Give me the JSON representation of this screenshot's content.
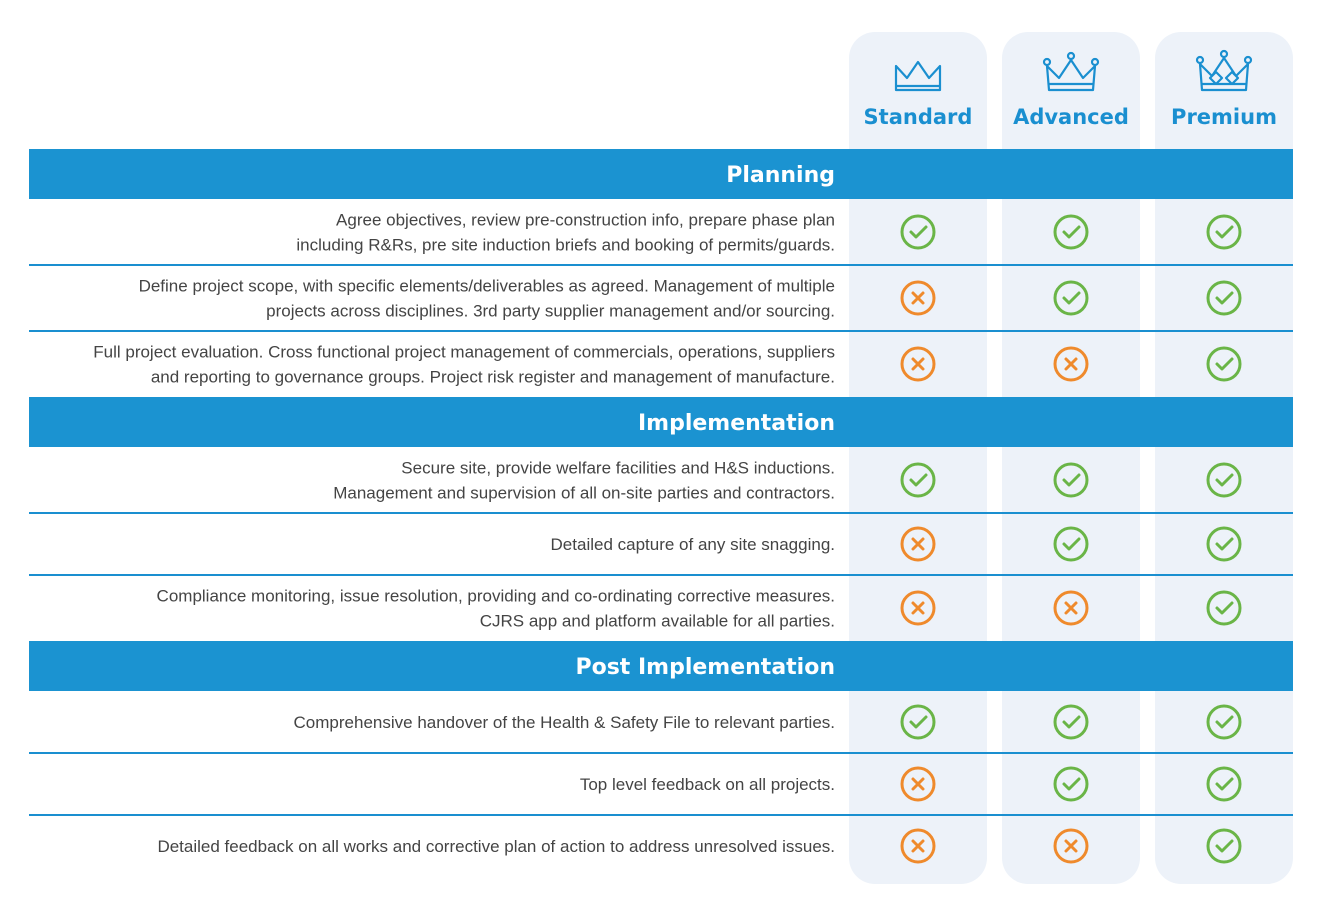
{
  "plans": [
    "Standard",
    "Advanced",
    "Premium"
  ],
  "sections": [
    {
      "title": "Planning",
      "rows": [
        {
          "lines": [
            "Agree objectives, review pre-construction info, prepare phase plan",
            "including R&Rs, pre site induction briefs and booking of permits/guards."
          ],
          "included": [
            true,
            true,
            true
          ]
        },
        {
          "lines": [
            "Define project scope, with specific elements/deliverables as agreed. Management of multiple",
            "projects across disciplines. 3rd party supplier management and/or sourcing."
          ],
          "included": [
            false,
            true,
            true
          ]
        },
        {
          "lines": [
            "Full project evaluation. Cross functional project management of commercials, operations, suppliers",
            "and reporting to governance groups. Project risk register and management of manufacture."
          ],
          "included": [
            false,
            false,
            true
          ]
        }
      ]
    },
    {
      "title": "Implementation",
      "rows": [
        {
          "lines": [
            "Secure site, provide welfare facilities and H&S inductions.",
            "Management and supervision of all on-site parties and contractors."
          ],
          "included": [
            true,
            true,
            true
          ]
        },
        {
          "lines": [
            "Detailed capture of any site snagging."
          ],
          "included": [
            false,
            true,
            true
          ]
        },
        {
          "lines": [
            "Compliance monitoring, issue resolution, providing and co-ordinating corrective measures.",
            "CJRS app and platform available for all parties."
          ],
          "included": [
            false,
            false,
            true
          ]
        }
      ]
    },
    {
      "title": "Post Implementation",
      "rows": [
        {
          "lines": [
            "Comprehensive handover of the Health & Safety File to relevant parties."
          ],
          "included": [
            true,
            true,
            true
          ]
        },
        {
          "lines": [
            "Top level feedback on all projects."
          ],
          "included": [
            false,
            true,
            true
          ]
        },
        {
          "lines": [
            "Detailed feedback on all works and corrective plan of action to address unresolved issues."
          ],
          "included": [
            false,
            false,
            true
          ]
        }
      ]
    }
  ]
}
